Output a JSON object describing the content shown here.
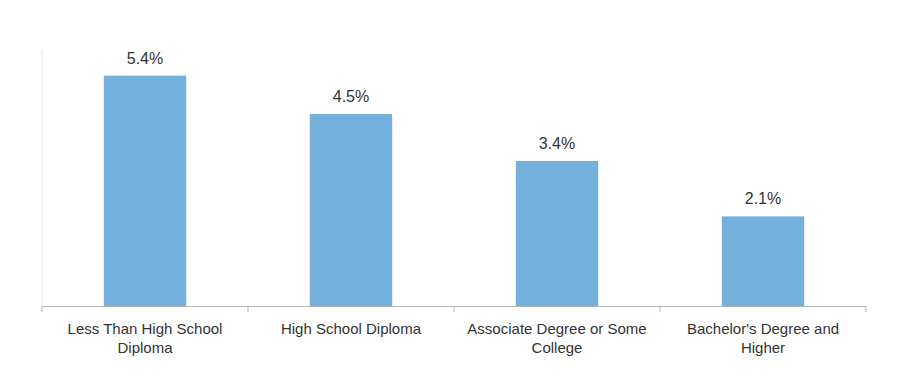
{
  "chart_data": {
    "type": "bar",
    "categories": [
      "Less Than High School Diploma",
      "High School Diploma",
      "Associate Degree or Some College",
      "Bachelor's Degree and Higher"
    ],
    "values": [
      5.4,
      4.5,
      3.4,
      2.1
    ],
    "value_labels": [
      "5.4%",
      "4.5%",
      "3.4%",
      "2.1%"
    ],
    "color": "#74b0dc",
    "ylim": [
      0,
      6
    ],
    "grid": false,
    "data_labels": true,
    "tick_labels": "x"
  }
}
